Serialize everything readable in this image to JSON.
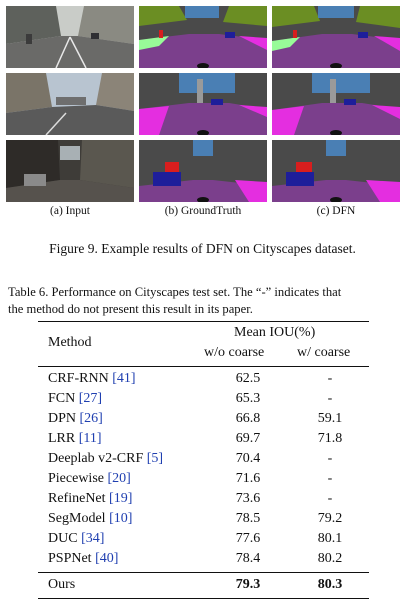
{
  "figure": {
    "subcaptions": [
      "(a) Input",
      "(b) GroundTruth",
      "(c) DFN"
    ],
    "caption": "Figure 9. Example results of DFN on Cityscapes dataset.",
    "colors": {
      "road": "#7b3f8c",
      "sidewalk": "#e42ee0",
      "building": "#4a4a4a",
      "vegetation": "#6b8e23",
      "sky": "#4a7fb4",
      "car": "#1e1e9a",
      "person": "#d81e1e",
      "pole": "#9a9a9a",
      "terrain": "#98fb98"
    }
  },
  "table": {
    "caption_line1": "Table 6. Performance on Cityscapes test set. The “-” indicates that",
    "caption_line2": "the method do not present this result in its paper.",
    "header": {
      "method": "Method",
      "group": "Mean IOU(%)",
      "col1": "w/o coarse",
      "col2": "w/ coarse"
    },
    "rows": [
      {
        "name": "CRF-RNN",
        "ref": "[41]",
        "wo": "62.5",
        "w": "-"
      },
      {
        "name": "FCN",
        "ref": "[27]",
        "wo": "65.3",
        "w": "-"
      },
      {
        "name": "DPN",
        "ref": "[26]",
        "wo": "66.8",
        "w": "59.1"
      },
      {
        "name": "LRR",
        "ref": "[11]",
        "wo": "69.7",
        "w": "71.8"
      },
      {
        "name": "Deeplab v2-CRF",
        "ref": "[5]",
        "wo": "70.4",
        "w": "-"
      },
      {
        "name": "Piecewise",
        "ref": "[20]",
        "wo": "71.6",
        "w": "-"
      },
      {
        "name": "RefineNet",
        "ref": "[19]",
        "wo": "73.6",
        "w": "-"
      },
      {
        "name": "SegModel",
        "ref": "[10]",
        "wo": "78.5",
        "w": "79.2"
      },
      {
        "name": "DUC",
        "ref": "[34]",
        "wo": "77.6",
        "w": "80.1"
      },
      {
        "name": "PSPNet",
        "ref": "[40]",
        "wo": "78.4",
        "w": "80.2"
      }
    ],
    "ours": {
      "name": "Ours",
      "wo": "79.3",
      "w": "80.3"
    }
  }
}
